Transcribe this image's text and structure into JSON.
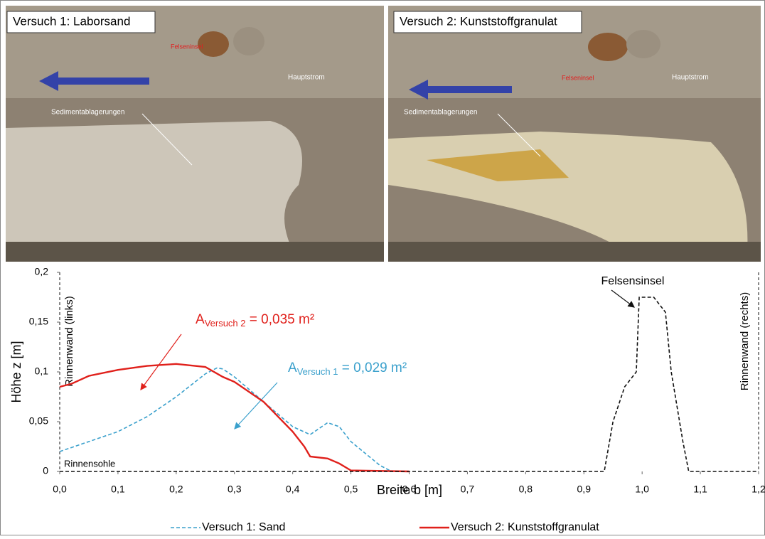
{
  "panels": [
    {
      "title": "Versuch 1: Laborsand",
      "labels": [
        "Felseninsel",
        "Hauptstrom",
        "Sedimentablagerungen"
      ]
    },
    {
      "title": "Versuch 2: Kunststoffgranulat",
      "labels": [
        "Felseninsel",
        "Hauptstrom",
        "Sedimentablagerungen"
      ]
    }
  ],
  "chart_data": {
    "type": "line",
    "xlabel": "Breite b [m]",
    "ylabel": "Höhe z [m]",
    "xlim": [
      0,
      1.2
    ],
    "ylim": [
      0,
      0.2
    ],
    "xticks": [
      {
        "value": 0,
        "label": "0,0"
      },
      {
        "value": 0.1,
        "label": "0,1"
      },
      {
        "value": 0.2,
        "label": "0,2"
      },
      {
        "value": 0.3,
        "label": "0,3"
      },
      {
        "value": 0.4,
        "label": "0,4"
      },
      {
        "value": 0.5,
        "label": "0,5"
      },
      {
        "value": 0.6,
        "label": "0,6"
      },
      {
        "value": 0.7,
        "label": "0,7"
      },
      {
        "value": 0.8,
        "label": "0,8"
      },
      {
        "value": 0.9,
        "label": "0,9"
      },
      {
        "value": 1,
        "label": "1,0"
      },
      {
        "value": 1.1,
        "label": "1,1"
      },
      {
        "value": 1.2,
        "label": "1,2"
      }
    ],
    "yticks": [
      0,
      {
        "value": 0.05,
        "label": "0,05"
      },
      {
        "value": 0.1,
        "label": "0,1"
      },
      {
        "value": 0.15,
        "label": "0,15"
      },
      {
        "value": 0.2,
        "label": "0,2"
      }
    ],
    "series": [
      {
        "name": "Versuch 1: Sand",
        "color": "#3aa0cc",
        "dash": true,
        "x": [
          0,
          0.1,
          0.15,
          0.2,
          0.25,
          0.27,
          0.28,
          0.3,
          0.35,
          0.4,
          0.43,
          0.46,
          0.48,
          0.5,
          0.55,
          0.57
        ],
        "values": [
          0.02,
          0.04,
          0.055,
          0.075,
          0.098,
          0.104,
          0.103,
          0.095,
          0.07,
          0.045,
          0.037,
          0.049,
          0.045,
          0.03,
          0.006,
          0
        ]
      },
      {
        "name": "Versuch 2: Kunststoffgranulat",
        "color": "#e0201b",
        "dash": false,
        "x": [
          0,
          0.02,
          0.05,
          0.1,
          0.15,
          0.2,
          0.25,
          0.28,
          0.3,
          0.35,
          0.4,
          0.42,
          0.43,
          0.46,
          0.48,
          0.5,
          0.6
        ],
        "values": [
          0.085,
          0.088,
          0.096,
          0.102,
          0.106,
          0.108,
          0.105,
          0.095,
          0.09,
          0.07,
          0.04,
          0.025,
          0.015,
          0.013,
          0.008,
          0.001,
          0
        ]
      },
      {
        "color": "#111111",
        "dash": true,
        "x": [
          0,
          0.935,
          0.95,
          0.97,
          0.99,
          0.995,
          1.02,
          1.04,
          1.05,
          1.07,
          1.08,
          1.2
        ],
        "values": [
          0,
          0,
          0.05,
          0.085,
          0.1,
          0.175,
          0.175,
          0.16,
          0.1,
          0.03,
          0,
          0
        ]
      }
    ],
    "annotations": {
      "rock": "Felsensinsel",
      "wall_left": "Rinnenwand (links)",
      "wall_right": "Rinnenwand (rechts)",
      "floor": "Rinnensohle",
      "area2": {
        "main": "A",
        "sub": "Versuch 2",
        "rest": " = 0,035 m²"
      },
      "area1": {
        "main": "A",
        "sub": "Versuch 1",
        "rest": " = 0,029 m²"
      }
    }
  }
}
